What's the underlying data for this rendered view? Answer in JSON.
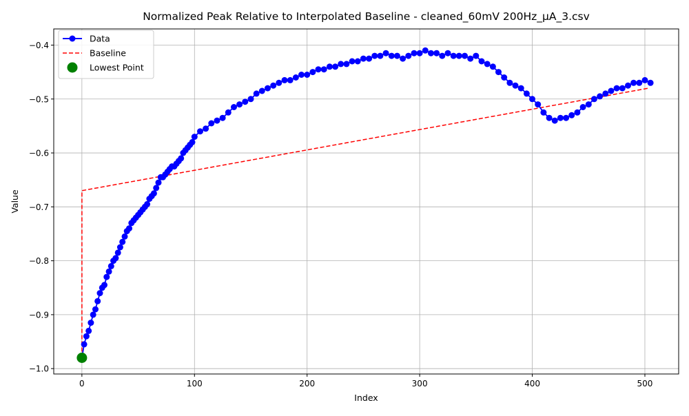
{
  "chart_data": {
    "type": "line",
    "title": "Normalized Peak Relative to Interpolated Baseline - cleaned_60mV 200Hz_µA_3.csv",
    "xlabel": "Index",
    "ylabel": "Value",
    "xlim": [
      -25,
      530
    ],
    "ylim": [
      -1.01,
      -0.37
    ],
    "xticks": [
      0,
      100,
      200,
      300,
      400,
      500
    ],
    "yticks": [
      -1.0,
      -0.9,
      -0.8,
      -0.7,
      -0.6,
      -0.5,
      -0.4
    ],
    "xtick_labels": [
      "0",
      "100",
      "200",
      "300",
      "400",
      "500"
    ],
    "ytick_labels": [
      "−1.0",
      "−0.9",
      "−0.8",
      "−0.7",
      "−0.6",
      "−0.5",
      "−0.4"
    ],
    "grid": true,
    "legend_position": "upper-left",
    "legend": [
      {
        "label": "Data",
        "marker": "line-circle",
        "color": "#0000ff"
      },
      {
        "label": "Baseline",
        "marker": "dashed-line",
        "color": "#ff0000"
      },
      {
        "label": "Lowest Point",
        "marker": "circle",
        "color": "#008000"
      }
    ],
    "series": [
      {
        "name": "Data",
        "color": "#0000ff",
        "x": [
          0,
          2,
          4,
          6,
          8,
          10,
          12,
          14,
          16,
          18,
          20,
          22,
          24,
          26,
          28,
          30,
          32,
          34,
          36,
          38,
          40,
          42,
          44,
          46,
          48,
          50,
          52,
          54,
          56,
          58,
          60,
          62,
          64,
          66,
          68,
          70,
          72,
          74,
          76,
          78,
          80,
          82,
          84,
          86,
          88,
          90,
          92,
          94,
          96,
          98,
          100,
          105,
          110,
          115,
          120,
          125,
          130,
          135,
          140,
          145,
          150,
          155,
          160,
          165,
          170,
          175,
          180,
          185,
          190,
          195,
          200,
          205,
          210,
          215,
          220,
          225,
          230,
          235,
          240,
          245,
          250,
          255,
          260,
          265,
          270,
          275,
          280,
          285,
          290,
          295,
          300,
          305,
          310,
          315,
          320,
          325,
          330,
          335,
          340,
          345,
          350,
          355,
          360,
          365,
          370,
          375,
          380,
          385,
          390,
          395,
          400,
          405,
          410,
          415,
          420,
          425,
          430,
          435,
          440,
          445,
          450,
          455,
          460,
          465,
          470,
          475,
          480,
          485,
          490,
          495,
          500,
          505
        ],
        "y": [
          -0.98,
          -0.955,
          -0.94,
          -0.93,
          -0.915,
          -0.9,
          -0.89,
          -0.875,
          -0.86,
          -0.85,
          -0.845,
          -0.83,
          -0.82,
          -0.81,
          -0.8,
          -0.795,
          -0.785,
          -0.775,
          -0.765,
          -0.755,
          -0.745,
          -0.74,
          -0.73,
          -0.725,
          -0.72,
          -0.715,
          -0.71,
          -0.705,
          -0.7,
          -0.695,
          -0.685,
          -0.68,
          -0.675,
          -0.665,
          -0.655,
          -0.645,
          -0.645,
          -0.64,
          -0.635,
          -0.63,
          -0.625,
          -0.625,
          -0.62,
          -0.615,
          -0.61,
          -0.6,
          -0.595,
          -0.59,
          -0.585,
          -0.58,
          -0.57,
          -0.56,
          -0.555,
          -0.545,
          -0.54,
          -0.535,
          -0.525,
          -0.515,
          -0.51,
          -0.505,
          -0.5,
          -0.49,
          -0.485,
          -0.48,
          -0.475,
          -0.47,
          -0.465,
          -0.465,
          -0.46,
          -0.455,
          -0.455,
          -0.45,
          -0.445,
          -0.445,
          -0.44,
          -0.44,
          -0.435,
          -0.435,
          -0.43,
          -0.43,
          -0.425,
          -0.425,
          -0.42,
          -0.42,
          -0.415,
          -0.42,
          -0.42,
          -0.425,
          -0.42,
          -0.415,
          -0.415,
          -0.41,
          -0.415,
          -0.415,
          -0.42,
          -0.415,
          -0.42,
          -0.42,
          -0.42,
          -0.425,
          -0.42,
          -0.43,
          -0.435,
          -0.44,
          -0.45,
          -0.46,
          -0.47,
          -0.475,
          -0.48,
          -0.49,
          -0.5,
          -0.51,
          -0.525,
          -0.535,
          -0.54,
          -0.535,
          -0.535,
          -0.53,
          -0.525,
          -0.515,
          -0.51,
          -0.5,
          -0.495,
          -0.49,
          -0.485,
          -0.48,
          -0.48,
          -0.475,
          -0.47,
          -0.47,
          -0.465,
          -0.47
        ]
      },
      {
        "name": "Baseline",
        "color": "#ff0000",
        "x": [
          0,
          0,
          503
        ],
        "y": [
          -0.98,
          -0.67,
          -0.48
        ]
      },
      {
        "name": "Lowest Point",
        "color": "#008000",
        "x": [
          0
        ],
        "y": [
          -0.98
        ]
      }
    ]
  }
}
